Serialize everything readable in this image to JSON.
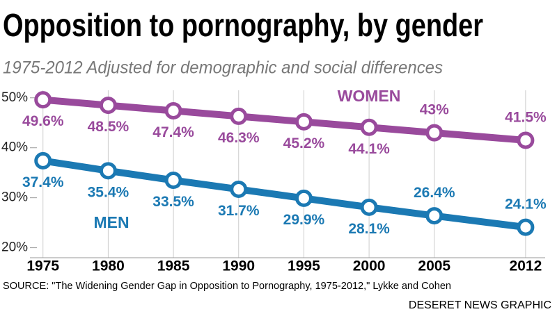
{
  "chart_data": {
    "type": "line",
    "title": "Opposition to pornography, by gender",
    "subtitle": "1975-2012 Adjusted for demographic and social differences",
    "source": "SOURCE: \"The Widening Gender Gap in Opposition to Pornography, 1975-2012,\" Lykke and Cohen",
    "credit": "DESERET NEWS GRAPHIC",
    "x": [
      1975,
      1980,
      1985,
      1990,
      1995,
      2000,
      2005,
      2012
    ],
    "xlim": [
      1974,
      2013.5
    ],
    "xticks": [
      1975,
      1980,
      1985,
      1990,
      1995,
      2000,
      2005,
      2012
    ],
    "ylim": [
      18,
      51.5
    ],
    "yticks": [
      {
        "value": 50,
        "label": "50%"
      },
      {
        "value": 40,
        "label": "40%"
      },
      {
        "value": 30,
        "label": "30%"
      },
      {
        "value": 20,
        "label": "20%"
      }
    ],
    "grid": true,
    "series": [
      {
        "name": "WOMEN",
        "color": "#994a9c",
        "values": [
          49.6,
          48.5,
          47.4,
          46.3,
          45.2,
          44.1,
          43,
          41.5
        ],
        "value_labels": [
          "49.6%",
          "48.5%",
          "47.4%",
          "46.3%",
          "45.2%",
          "44.1%",
          "43%",
          "41.5%"
        ]
      },
      {
        "name": "MEN",
        "color": "#1b79b3",
        "values": [
          37.4,
          35.4,
          33.5,
          31.7,
          29.9,
          28.1,
          26.4,
          24.1
        ],
        "value_labels": [
          "37.4%",
          "35.4%",
          "33.5%",
          "31.7%",
          "29.9%",
          "28.1%",
          "26.4%",
          "24.1%"
        ]
      }
    ]
  }
}
